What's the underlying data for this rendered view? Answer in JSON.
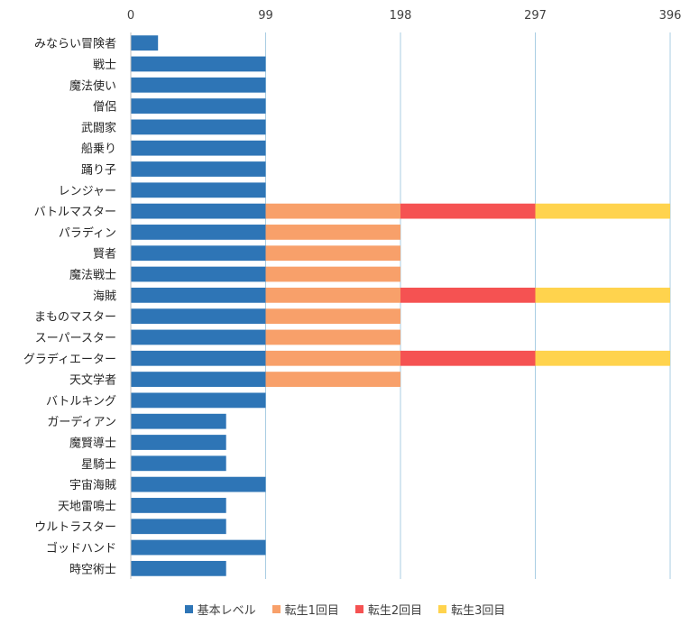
{
  "chart_data": {
    "type": "bar",
    "orientation": "horizontal",
    "stacked": true,
    "categories": [
      "みならい冒険者",
      "戦士",
      "魔法使い",
      "僧侶",
      "武闘家",
      "船乗り",
      "踊り子",
      "レンジャー",
      "バトルマスター",
      "パラディン",
      "賢者",
      "魔法戦士",
      "海賊",
      "まものマスター",
      "スーパースター",
      "グラディエーター",
      "天文学者",
      "バトルキング",
      "ガーディアン",
      "魔賢導士",
      "星騎士",
      "宇宙海賊",
      "天地雷鳴士",
      "ウルトラスター",
      "ゴッドハンド",
      "時空術士"
    ],
    "series": [
      {
        "name": "基本レベル",
        "color": "#2E75B6",
        "values": [
          20,
          99,
          99,
          99,
          99,
          99,
          99,
          99,
          99,
          99,
          99,
          99,
          99,
          99,
          99,
          99,
          99,
          99,
          70,
          70,
          70,
          99,
          70,
          70,
          99,
          70
        ]
      },
      {
        "name": "転生1回目",
        "color": "#F8A06A",
        "values": [
          0,
          0,
          0,
          0,
          0,
          0,
          0,
          0,
          99,
          99,
          99,
          99,
          99,
          99,
          99,
          99,
          99,
          0,
          0,
          0,
          0,
          0,
          0,
          0,
          0,
          0
        ]
      },
      {
        "name": "転生2回目",
        "color": "#F55252",
        "values": [
          0,
          0,
          0,
          0,
          0,
          0,
          0,
          0,
          99,
          0,
          0,
          0,
          99,
          0,
          0,
          99,
          0,
          0,
          0,
          0,
          0,
          0,
          0,
          0,
          0,
          0
        ]
      },
      {
        "name": "転生3回目",
        "color": "#FFD34D",
        "values": [
          0,
          0,
          0,
          0,
          0,
          0,
          0,
          0,
          99,
          0,
          0,
          0,
          99,
          0,
          0,
          99,
          0,
          0,
          0,
          0,
          0,
          0,
          0,
          0,
          0,
          0
        ]
      }
    ],
    "x_ticks": [
      "0",
      "99",
      "198",
      "297",
      "396"
    ],
    "xlim": [
      0,
      396
    ],
    "x_axis_position": "top",
    "grid": true,
    "legend_position": "bottom"
  }
}
